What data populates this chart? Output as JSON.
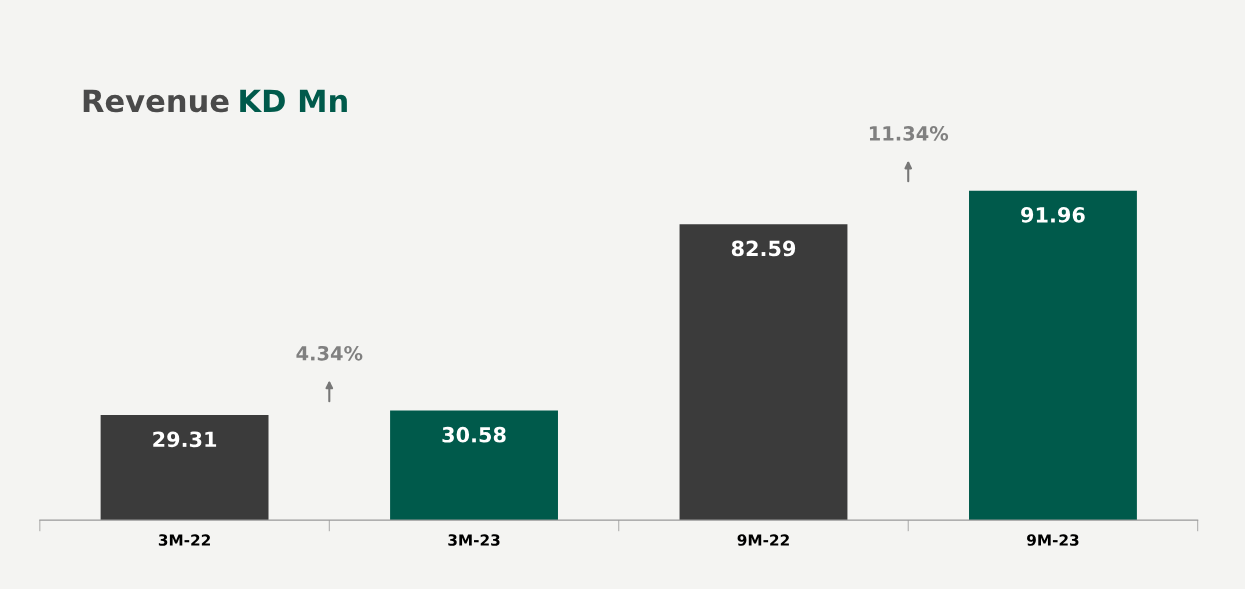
{
  "chart_data": {
    "type": "bar",
    "title": "Revenue KD Mn",
    "categories": [
      "3M-22",
      "3M-23",
      "9M-22",
      "9M-23"
    ],
    "values": [
      29.31,
      30.58,
      82.59,
      91.96
    ],
    "colors": [
      "#3b3b3b",
      "#005a4b",
      "#3b3b3b",
      "#005a4b"
    ],
    "data_labels": true,
    "annotations": [
      "4.34%",
      "11.34%"
    ],
    "grid": false,
    "legend": false
  }
}
